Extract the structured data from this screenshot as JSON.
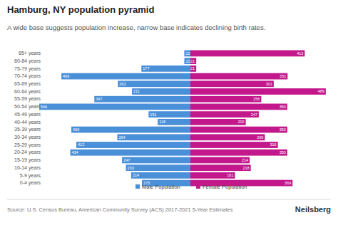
{
  "chart_data": {
    "type": "bar",
    "title": "Hamburg, NY population pyramid",
    "subtitle": "A wide base suggests population increase, narrow base indicates declining birth rates.",
    "categories": [
      "85+ years",
      "80-84 years",
      "75-79 years",
      "70-74 years",
      "65-69 years",
      "60-64 years",
      "55-59 years",
      "50-54 years",
      "45-49 years",
      "40-44 years",
      "35-39 years",
      "30-34 years",
      "25-29 years",
      "20-24 years",
      "15-19 years",
      "10-14 years",
      "5-9 years",
      "0-4 years"
    ],
    "series": [
      {
        "name": "Male Population",
        "color": "#4a90d9",
        "values": [
          22,
          22,
          177,
          466,
          262,
          211,
          347,
          546,
          151,
          118,
          430,
          264,
          412,
          434,
          247,
          233,
          214,
          175
        ]
      },
      {
        "name": "Female Population",
        "color": "#c2188c",
        "values": [
          413,
          21,
          21,
          351,
          301,
          489,
          256,
          350,
          247,
          200,
          350,
          269,
          316,
          350,
          214,
          218,
          161,
          369
        ]
      }
    ],
    "orientation": "horizontal",
    "data_labels": true,
    "legend": "bottom",
    "tick_labels": "y",
    "grid": false,
    "source": "Source: U.S. Census Bureau, American Community Survey (ACS) 2017-2021 5-Year Estimates",
    "brand": "Neilsberg"
  }
}
